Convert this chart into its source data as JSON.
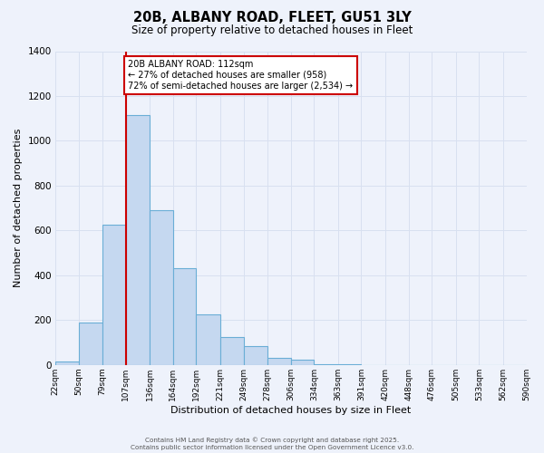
{
  "title": "20B, ALBANY ROAD, FLEET, GU51 3LY",
  "subtitle": "Size of property relative to detached houses in Fleet",
  "xlabel": "Distribution of detached houses by size in Fleet",
  "ylabel": "Number of detached properties",
  "bar_color": "#c5d8f0",
  "bar_edge_color": "#6aaed6",
  "background_color": "#eef2fb",
  "grid_color": "#d8e0f0",
  "bin_edges": [
    22,
    50,
    79,
    107,
    136,
    164,
    192,
    221,
    249,
    278,
    306,
    334,
    363,
    391,
    420,
    448,
    476,
    505,
    533,
    562,
    590
  ],
  "bin_labels": [
    "22sqm",
    "50sqm",
    "79sqm",
    "107sqm",
    "136sqm",
    "164sqm",
    "192sqm",
    "221sqm",
    "249sqm",
    "278sqm",
    "306sqm",
    "334sqm",
    "363sqm",
    "391sqm",
    "420sqm",
    "448sqm",
    "476sqm",
    "505sqm",
    "533sqm",
    "562sqm",
    "590sqm"
  ],
  "counts": [
    15,
    190,
    625,
    1115,
    690,
    430,
    225,
    125,
    83,
    30,
    22,
    5,
    4,
    0,
    0,
    0,
    0,
    0,
    0,
    0
  ],
  "vline_x": 107,
  "vline_color": "#cc0000",
  "annotation_line1": "20B ALBANY ROAD: 112sqm",
  "annotation_line2": "← 27% of detached houses are smaller (958)",
  "annotation_line3": "72% of semi-detached houses are larger (2,534) →",
  "annotation_box_color": "#ffffff",
  "annotation_box_edge": "#cc0000",
  "ylim": [
    0,
    1400
  ],
  "yticks": [
    0,
    200,
    400,
    600,
    800,
    1000,
    1200,
    1400
  ],
  "footer_line1": "Contains HM Land Registry data © Crown copyright and database right 2025.",
  "footer_line2": "Contains public sector information licensed under the Open Government Licence v3.0."
}
